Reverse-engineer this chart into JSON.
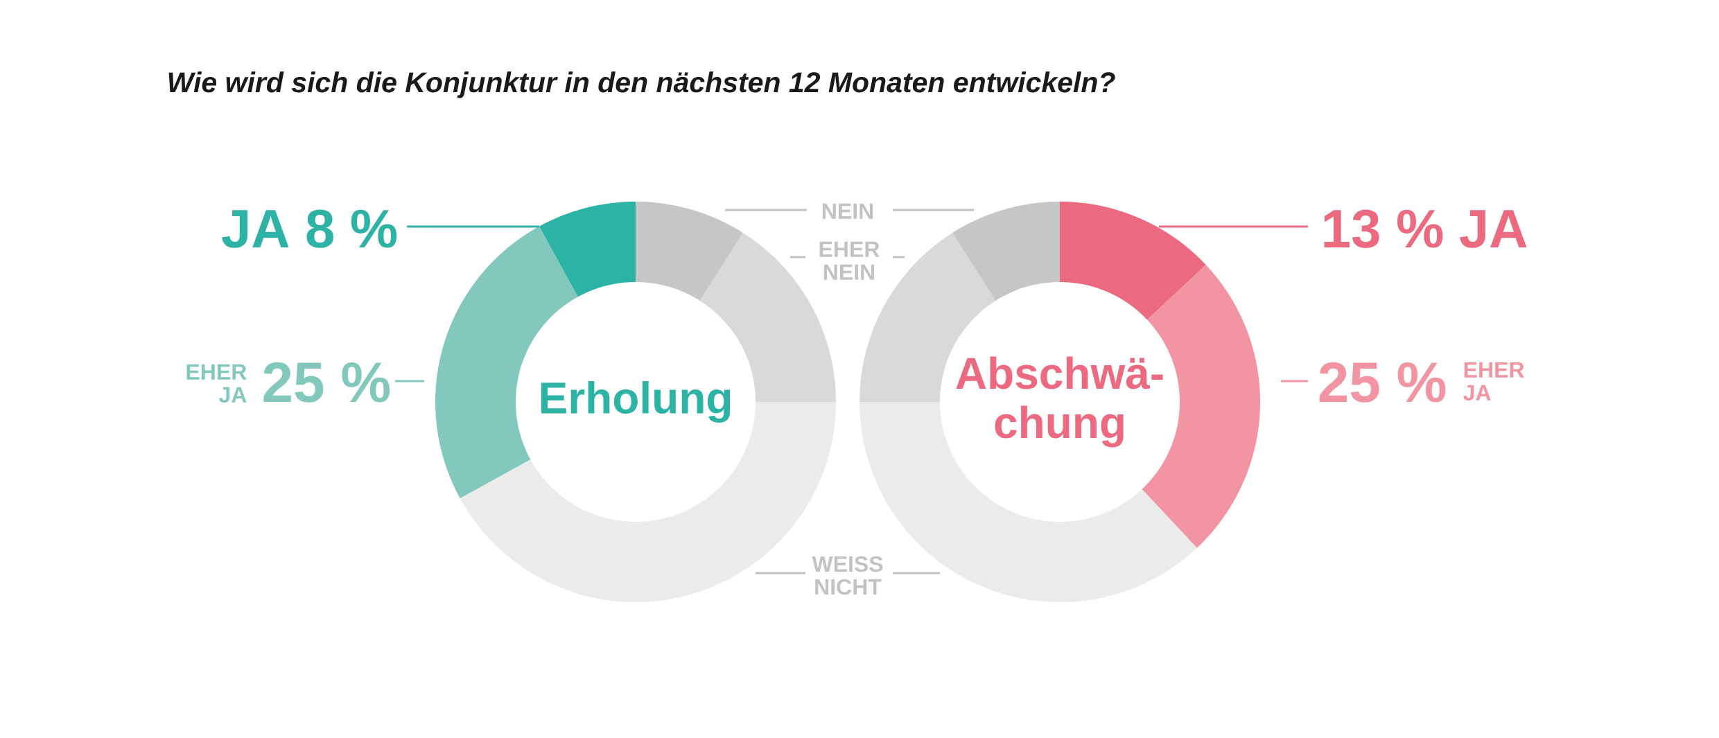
{
  "chart_data": [
    {
      "type": "donut",
      "title": "Wie wird sich die Konjunktur in den nächsten 12 Monaten entwickeln?",
      "annotations": [
        "Erholung"
      ],
      "categories": [
        "JA",
        "EHER JA",
        "WEISS NICHT",
        "EHER NEIN",
        "NEIN"
      ],
      "values": [
        8,
        25,
        42,
        16,
        9
      ],
      "value_labels": [
        "8 %",
        "25 %",
        null,
        null,
        null
      ],
      "colors": [
        "#2db3a6",
        "#82c8bc",
        "#ebebeb",
        "#d9d9d9",
        "#c6c6c6"
      ]
    },
    {
      "type": "donut",
      "annotations": [
        "Abschwä-chung"
      ],
      "categories": [
        "JA",
        "EHER JA",
        null,
        null,
        null
      ],
      "values": [
        13,
        25,
        37,
        16,
        9
      ],
      "value_labels": [
        "13 %",
        "25 %",
        null,
        null,
        null
      ],
      "colors": [
        "#ec6a80",
        "#f294a1",
        "#ebebeb",
        "#d9d9d9",
        "#c6c6c6"
      ]
    }
  ]
}
